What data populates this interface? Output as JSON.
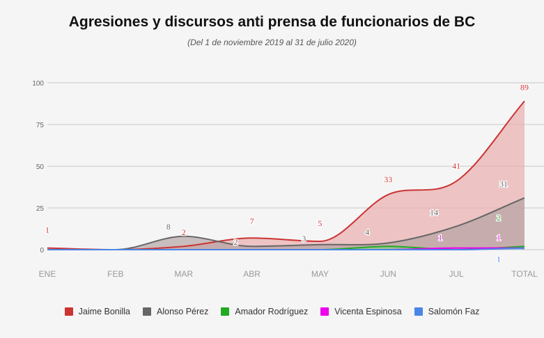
{
  "title": "Agresiones y discursos anti prensa de funcionarios de BC",
  "subtitle": "(Del 1 de noviembre 2019 al 31 de julio 2020)",
  "chart_data": {
    "type": "area",
    "categories": [
      "ENE",
      "FEB",
      "MAR",
      "ABR",
      "MAY",
      "JUN",
      "JUL",
      "TOTAL"
    ],
    "ylim": [
      0,
      100
    ],
    "yticks": [
      0,
      25,
      50,
      75,
      100
    ],
    "grid": true,
    "legend_position": "bottom",
    "series": [
      {
        "name": "Jaime Bonilla",
        "color": "#cc3333",
        "fill": "#e8a8a8",
        "values": [
          1,
          0,
          2,
          7,
          5,
          33,
          41,
          89
        ],
        "labels": [
          "1",
          "",
          "2",
          "7",
          "5",
          "33",
          "41",
          "89"
        ]
      },
      {
        "name": "Alonso Pérez",
        "color": "#666666",
        "fill": "#b0a0a0",
        "values": [
          0,
          0,
          8,
          2,
          3,
          4,
          14,
          31
        ],
        "labels": [
          "",
          "",
          "8",
          "2",
          "3",
          "4",
          "14",
          "31"
        ]
      },
      {
        "name": "Amador Rodríguez",
        "color": "#22aa22",
        "fill": "#88cc88",
        "values": [
          0,
          0,
          0,
          0,
          0,
          2,
          0,
          2
        ],
        "labels": [
          "",
          "",
          "",
          "",
          "",
          "",
          "",
          "2"
        ]
      },
      {
        "name": "Vicenta Espinosa",
        "color": "#ee00ee",
        "fill": "#dd88dd",
        "values": [
          0,
          0,
          0,
          0,
          0,
          0,
          1,
          1
        ],
        "labels": [
          "",
          "",
          "",
          "",
          "",
          "",
          "1",
          "1"
        ]
      },
      {
        "name": "Salomón Faz",
        "color": "#4a86e8",
        "fill": "#9ab8ee",
        "values": [
          0,
          0,
          0,
          0,
          0,
          0,
          0,
          1
        ],
        "labels": [
          "",
          "",
          "",
          "",
          "",
          "",
          "",
          "1"
        ]
      }
    ]
  }
}
